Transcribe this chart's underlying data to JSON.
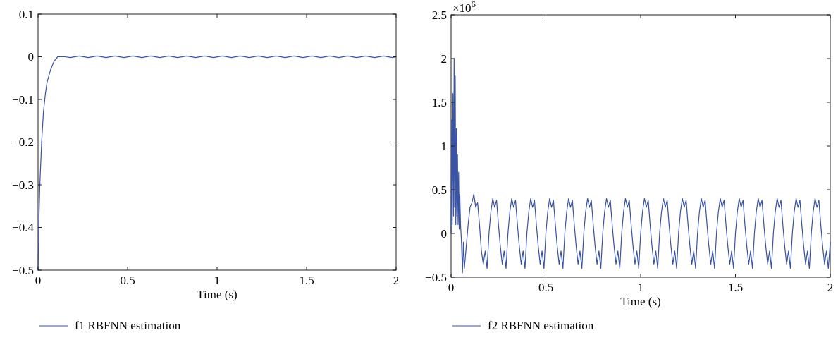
{
  "chart_data": [
    {
      "type": "line",
      "xlabel": "Time (s)",
      "legend": "bottom",
      "xlim": [
        0,
        2
      ],
      "xticks": [
        0,
        0.5,
        1,
        1.5,
        2
      ],
      "ylim": [
        -0.5,
        0.1
      ],
      "yticks": [
        0.1,
        0,
        {
          "value": -0.1,
          "label": "−0.1"
        },
        {
          "value": -0.2,
          "label": "−0.2"
        },
        {
          "value": -0.3,
          "label": "−0.3"
        },
        {
          "value": -0.4,
          "label": "−0.4"
        },
        {
          "value": -0.5,
          "label": "−0.5"
        }
      ],
      "series": [
        {
          "name": "f1 RBFNN estimation",
          "color": "#3a53a4",
          "x": [
            0,
            0.005,
            0.01,
            0.02,
            0.03,
            0.04,
            0.05,
            0.07,
            0.09,
            0.11,
            0.13,
            0.15,
            0.18,
            0.23,
            0.28,
            0.33,
            0.38,
            0.43,
            0.48,
            0.53,
            0.58,
            0.63,
            0.68,
            0.73,
            0.78,
            0.83,
            0.88,
            0.93,
            0.98,
            1.03,
            1.08,
            1.13,
            1.18,
            1.23,
            1.28,
            1.33,
            1.38,
            1.43,
            1.48,
            1.53,
            1.58,
            1.63,
            1.68,
            1.73,
            1.78,
            1.83,
            1.88,
            1.93,
            1.98,
            2
          ],
          "values": [
            -0.5,
            -0.38,
            -0.3,
            -0.2,
            -0.13,
            -0.09,
            -0.06,
            -0.03,
            -0.01,
            0,
            0,
            0,
            -0.002,
            0.002,
            -0.002,
            0.002,
            -0.002,
            0.002,
            -0.002,
            0.002,
            -0.002,
            0.002,
            -0.002,
            0.002,
            -0.002,
            0.002,
            -0.002,
            0.002,
            -0.002,
            0.002,
            -0.002,
            0.002,
            -0.002,
            0.002,
            -0.002,
            0.002,
            -0.002,
            0.002,
            -0.002,
            0.002,
            -0.002,
            0.002,
            -0.002,
            0.002,
            -0.002,
            0.002,
            -0.002,
            0.002,
            -0.002,
            0
          ]
        }
      ]
    },
    {
      "type": "line",
      "xlabel": "Time (s)",
      "legend": "bottom",
      "annotations": [
        "×10$^{6}$"
      ],
      "xlim": [
        0,
        2
      ],
      "xticks": [
        0,
        0.5,
        1,
        1.5,
        2
      ],
      "ylim": [
        -0.5,
        2.5
      ],
      "yticks": [
        2.5,
        2,
        1.5,
        1,
        0.5,
        0,
        {
          "value": -0.5,
          "label": "−0.5"
        }
      ],
      "series": [
        {
          "name": "f2 RBFNN estimation",
          "color": "#3a53a4",
          "x": [
            0,
            0.003,
            0.006,
            0.01,
            0.013,
            0.016,
            0.019,
            0.022,
            0.025,
            0.028,
            0.031,
            0.034,
            0.037,
            0.04,
            0.043,
            0.046,
            0.05,
            0.055,
            0.06,
            0.065,
            0.07,
            0.08,
            0.09,
            0.1,
            0.11,
            0.12,
            0.13,
            0.14,
            0.15,
            0.16,
            0.17,
            0.18,
            0.19,
            0.2,
            0.21,
            0.22,
            0.23,
            0.24,
            0.25,
            0.26,
            0.27,
            0.28,
            0.29,
            0.3,
            0.31,
            0.32,
            0.33,
            0.34,
            0.35,
            0.36,
            0.37,
            0.38,
            0.39,
            0.4,
            0.41,
            0.42,
            0.43,
            0.44,
            0.45,
            0.46,
            0.47,
            0.48,
            0.49,
            0.5,
            0.51,
            0.52,
            0.53,
            0.54,
            0.55,
            0.56,
            0.57,
            0.58,
            0.59,
            0.6,
            0.61,
            0.62,
            0.63,
            0.64,
            0.65,
            0.66,
            0.67,
            0.68,
            0.69,
            0.7,
            0.71,
            0.72,
            0.73,
            0.74,
            0.75,
            0.76,
            0.77,
            0.78,
            0.79,
            0.8,
            0.81,
            0.82,
            0.83,
            0.84,
            0.85,
            0.86,
            0.87,
            0.88,
            0.89,
            0.9,
            0.91,
            0.92,
            0.93,
            0.94,
            0.95,
            0.96,
            0.97,
            0.98,
            0.99,
            1,
            1.01,
            1.02,
            1.03,
            1.04,
            1.05,
            1.06,
            1.07,
            1.08,
            1.09,
            1.1,
            1.11,
            1.12,
            1.13,
            1.14,
            1.15,
            1.16,
            1.17,
            1.18,
            1.19,
            1.2,
            1.21,
            1.22,
            1.23,
            1.24,
            1.25,
            1.26,
            1.27,
            1.28,
            1.29,
            1.3,
            1.31,
            1.32,
            1.33,
            1.34,
            1.35,
            1.36,
            1.37,
            1.38,
            1.39,
            1.4,
            1.41,
            1.42,
            1.43,
            1.44,
            1.45,
            1.46,
            1.47,
            1.48,
            1.49,
            1.5,
            1.51,
            1.52,
            1.53,
            1.54,
            1.55,
            1.56,
            1.57,
            1.58,
            1.59,
            1.6,
            1.61,
            1.62,
            1.63,
            1.64,
            1.65,
            1.66,
            1.67,
            1.68,
            1.69,
            1.7,
            1.71,
            1.72,
            1.73,
            1.74,
            1.75,
            1.76,
            1.77,
            1.78,
            1.79,
            1.8,
            1.81,
            1.82,
            1.83,
            1.84,
            1.85,
            1.86,
            1.87,
            1.88,
            1.89,
            1.9,
            1.91,
            1.92,
            1.93,
            1.94,
            1.95,
            1.96,
            1.97,
            1.98,
            1.99,
            2
          ],
          "values": [
            0,
            1.3,
            0.1,
            1.6,
            0.2,
            2.0,
            0.3,
            1.8,
            0.1,
            1.2,
            0.2,
            0.9,
            0.1,
            0.7,
            0.05,
            0.45,
            0.1,
            -0.1,
            -0.45,
            -0.1,
            -0.4,
            -0.15,
            0.1,
            0.3,
            0.35,
            0.45,
            0.3,
            0.35,
            0.1,
            -0.2,
            -0.35,
            -0.2,
            -0.4,
            0,
            0.25,
            0.4,
            0.3,
            0.38,
            0.1,
            -0.15,
            -0.35,
            -0.2,
            -0.4,
            0,
            0.25,
            0.4,
            0.3,
            0.38,
            0.1,
            -0.15,
            -0.35,
            -0.2,
            -0.4,
            0,
            0.25,
            0.4,
            0.3,
            0.38,
            0.1,
            -0.15,
            -0.35,
            -0.2,
            -0.4,
            0,
            0.25,
            0.4,
            0.3,
            0.38,
            0.1,
            -0.15,
            -0.35,
            -0.2,
            -0.4,
            0,
            0.25,
            0.4,
            0.3,
            0.38,
            0.1,
            -0.15,
            -0.35,
            -0.2,
            -0.4,
            0,
            0.25,
            0.4,
            0.3,
            0.38,
            0.1,
            -0.15,
            -0.35,
            -0.2,
            -0.4,
            0,
            0.25,
            0.4,
            0.3,
            0.38,
            0.1,
            -0.15,
            -0.35,
            -0.2,
            -0.4,
            0,
            0.25,
            0.4,
            0.3,
            0.38,
            0.1,
            -0.15,
            -0.35,
            -0.2,
            -0.4,
            0,
            0.25,
            0.4,
            0.3,
            0.38,
            0.1,
            -0.15,
            -0.35,
            -0.2,
            -0.4,
            0,
            0.25,
            0.4,
            0.3,
            0.38,
            0.1,
            -0.15,
            -0.35,
            -0.2,
            -0.4,
            0,
            0.25,
            0.4,
            0.3,
            0.38,
            0.1,
            -0.15,
            -0.35,
            -0.2,
            -0.4,
            0,
            0.25,
            0.4,
            0.3,
            0.38,
            0.1,
            -0.15,
            -0.35,
            -0.2,
            -0.4,
            0,
            0.25,
            0.4,
            0.3,
            0.38,
            0.1,
            -0.15,
            -0.35,
            -0.2,
            -0.4,
            0,
            0.25,
            0.4,
            0.3,
            0.38,
            0.1,
            -0.15,
            -0.35,
            -0.2,
            -0.4,
            0,
            0.25,
            0.4,
            0.3,
            0.38,
            0.1,
            -0.15,
            -0.35,
            -0.2,
            -0.4,
            0,
            0.25,
            0.4,
            0.3,
            0.38,
            0.1,
            -0.15,
            -0.35,
            -0.2,
            -0.4,
            0,
            0.25,
            0.4,
            0.3,
            0.38,
            0.1,
            -0.15,
            -0.35,
            -0.2,
            -0.4,
            0,
            0.25,
            0.4,
            0.3,
            0.38,
            0.1,
            -0.15,
            -0.35,
            -0.2,
            -0.4,
            -0.1
          ]
        }
      ]
    }
  ]
}
